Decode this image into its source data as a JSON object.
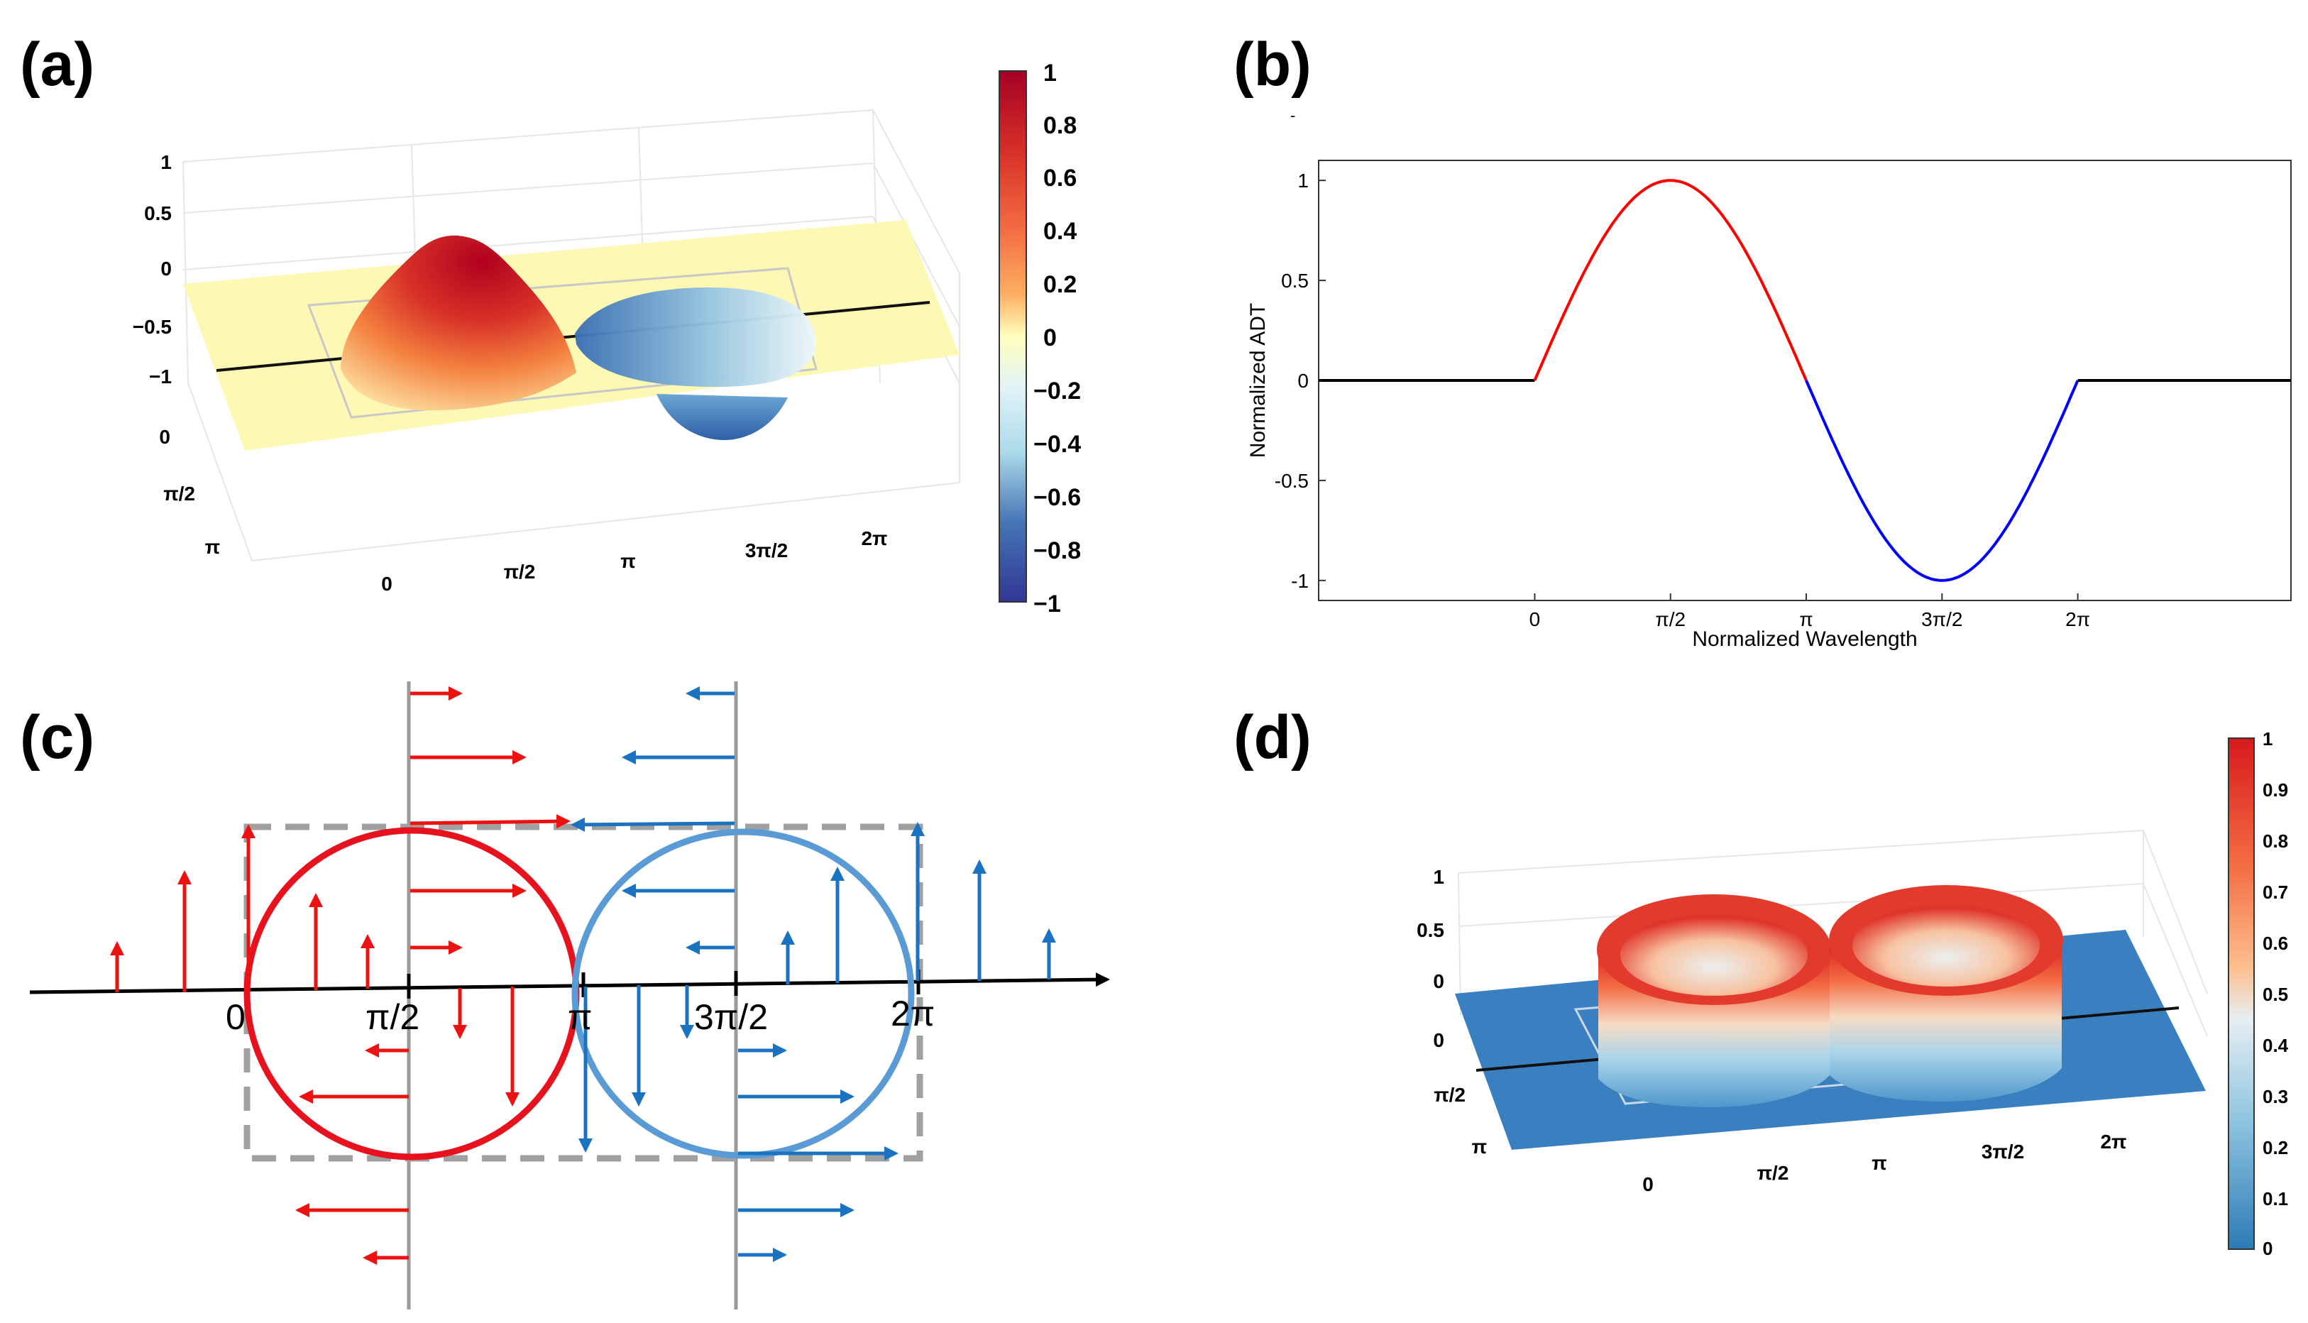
{
  "panels": {
    "a": {
      "label": "(a)"
    },
    "b": {
      "label": "(b)",
      "stray_mark": "-"
    },
    "c": {
      "label": "(c)"
    },
    "d": {
      "label": "(d)"
    }
  },
  "colors": {
    "red": "#ff0000",
    "blue": "#0000ff",
    "arrow_red": "#ee1111",
    "arrow_blue": "#1a72c0",
    "circle_red": "#e8121e",
    "circle_blue": "#5b9bd5",
    "dash_gray": "#a0a0a0",
    "plane_yellow": "#fdf8b3",
    "plane_blue": "#3a7fc0"
  },
  "chart_data": [
    {
      "id": "a",
      "type": "surface3d",
      "description": "Normalized ADT surface over the 2D plane",
      "z_ticks": [
        "1",
        "0.5",
        "0",
        "−0.5",
        "−1"
      ],
      "x_ticks": [
        "0",
        "π/2",
        "π",
        "3π/2",
        "2π"
      ],
      "y_ticks": [
        "0",
        "π/2",
        "π"
      ],
      "colorbar": {
        "ticks": [
          "1",
          "0.8",
          "0.6",
          "0.4",
          "0.2",
          "0",
          "−0.2",
          "−0.4",
          "−0.6",
          "−0.8",
          "−1"
        ],
        "range": [
          -1,
          1
        ]
      }
    },
    {
      "id": "b",
      "type": "line",
      "xlabel": "Normalized Wavelength",
      "ylabel": "Normalized ADT",
      "x_ticks": [
        "0",
        "π/2",
        "π",
        "3π/2",
        "2π"
      ],
      "x_tick_values": [
        0,
        1.5708,
        3.1416,
        4.7124,
        6.2832
      ],
      "y_ticks": [
        "1",
        "0.5",
        "0",
        "-0.5",
        "-1"
      ],
      "y_tick_values": [
        1,
        0.5,
        0,
        -0.5,
        -1
      ],
      "xlim": [
        -2.5,
        8.75
      ],
      "ylim": [
        -1.1,
        1.1
      ],
      "series": [
        {
          "name": "zero-left",
          "color": "#000000",
          "x": [
            -2.5,
            0
          ],
          "y": [
            0,
            0
          ]
        },
        {
          "name": "positive",
          "color": "#ff0000",
          "func": "sin",
          "x_range": [
            0,
            3.1416
          ]
        },
        {
          "name": "negative",
          "color": "#0000ff",
          "func": "sin",
          "x_range": [
            3.1416,
            6.2832
          ]
        },
        {
          "name": "zero-right",
          "color": "#000000",
          "x": [
            6.2832,
            8.75
          ],
          "y": [
            0,
            0
          ]
        }
      ]
    },
    {
      "id": "c",
      "type": "vector-diagram",
      "axis_ticks": [
        "0",
        "π/2",
        "π",
        "3π/2",
        "2π"
      ]
    },
    {
      "id": "d",
      "type": "surface3d",
      "z_ticks": [
        "1",
        "0.5",
        "0"
      ],
      "x_ticks": [
        "0",
        "π/2",
        "π",
        "3π/2",
        "2π"
      ],
      "y_ticks": [
        "0",
        "π/2",
        "π"
      ],
      "colorbar": {
        "ticks": [
          "1",
          "0.9",
          "0.8",
          "0.7",
          "0.6",
          "0.5",
          "0.4",
          "0.3",
          "0.2",
          "0.1",
          "0"
        ],
        "range": [
          0,
          1
        ]
      }
    }
  ]
}
